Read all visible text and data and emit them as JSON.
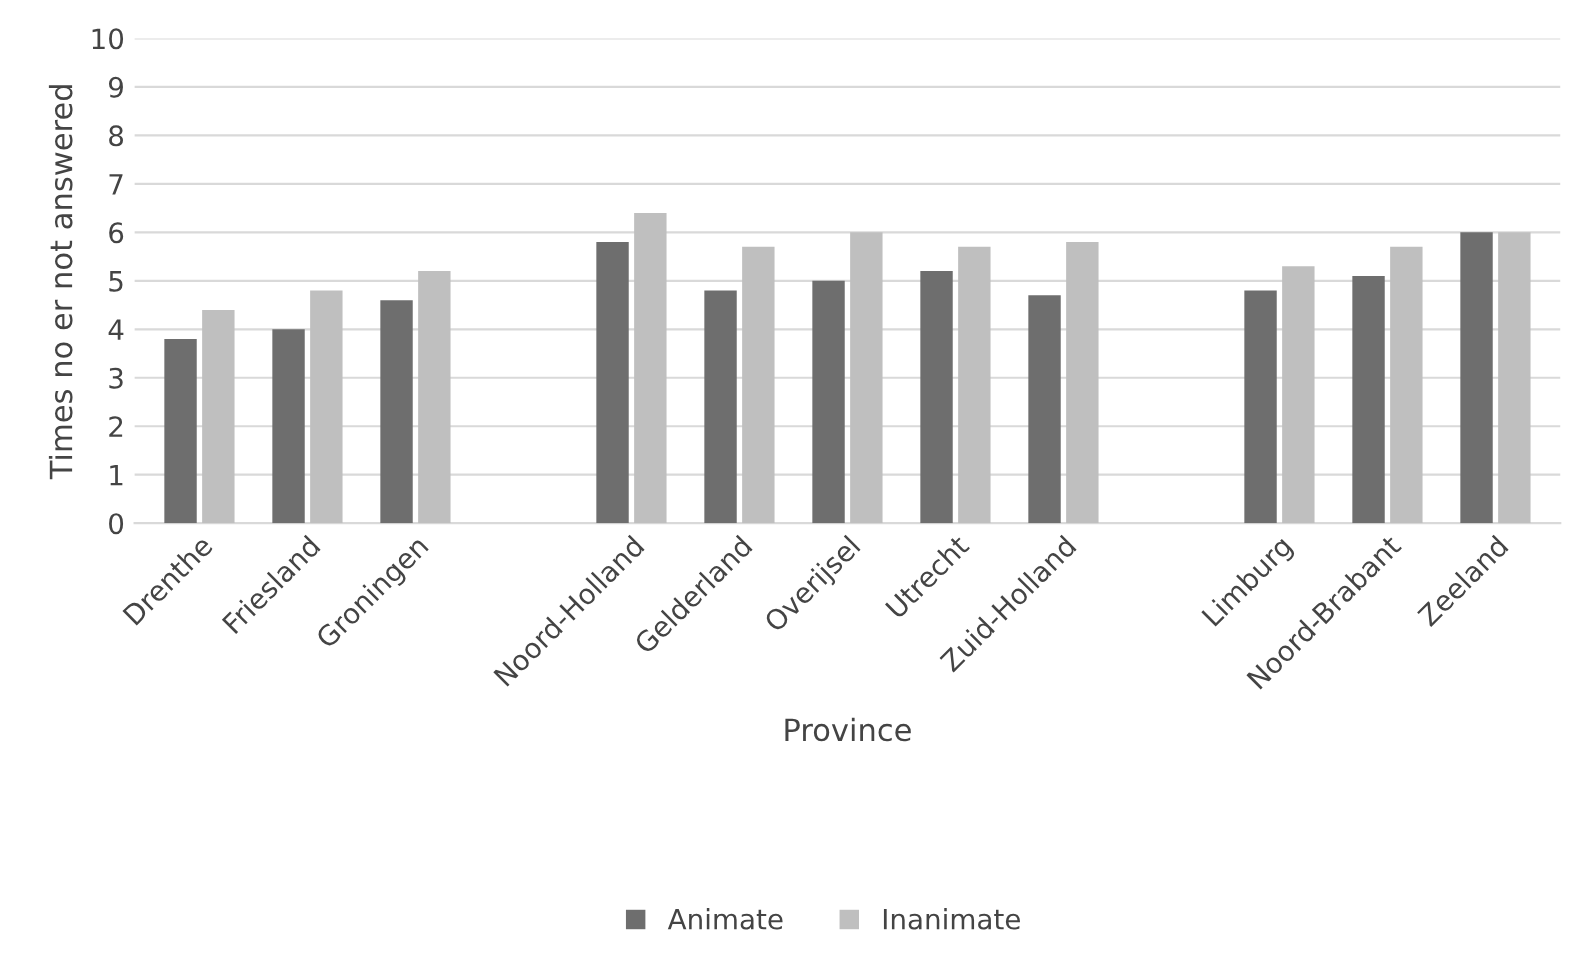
{
  "chart_data": {
    "type": "bar",
    "xlabel": "Province",
    "ylabel": "Times no er not answered",
    "categories": [
      "Drenthe",
      "Friesland",
      "Groningen",
      null,
      "Noord-Holland",
      "Gelderland",
      "Overijsel",
      "Utrecht",
      "Zuid-Holland",
      null,
      "Limburg",
      "Noord-Brabant",
      "Zeeland"
    ],
    "series": [
      {
        "name": "Animate",
        "color": "#6e6e6e",
        "values": [
          3.8,
          4.0,
          4.6,
          null,
          5.8,
          4.8,
          5.0,
          5.2,
          4.7,
          null,
          4.8,
          5.1,
          6.0
        ]
      },
      {
        "name": "Inanimate",
        "color": "#bfbfbf",
        "values": [
          4.4,
          4.8,
          5.2,
          null,
          6.4,
          5.7,
          6.0,
          5.7,
          5.8,
          null,
          5.3,
          5.7,
          6.0
        ]
      }
    ],
    "ylim": [
      0,
      10
    ],
    "yticks": [
      0,
      1,
      2,
      3,
      4,
      5,
      6,
      7,
      8,
      9,
      10
    ],
    "grid": "y",
    "legend": "bottom"
  }
}
